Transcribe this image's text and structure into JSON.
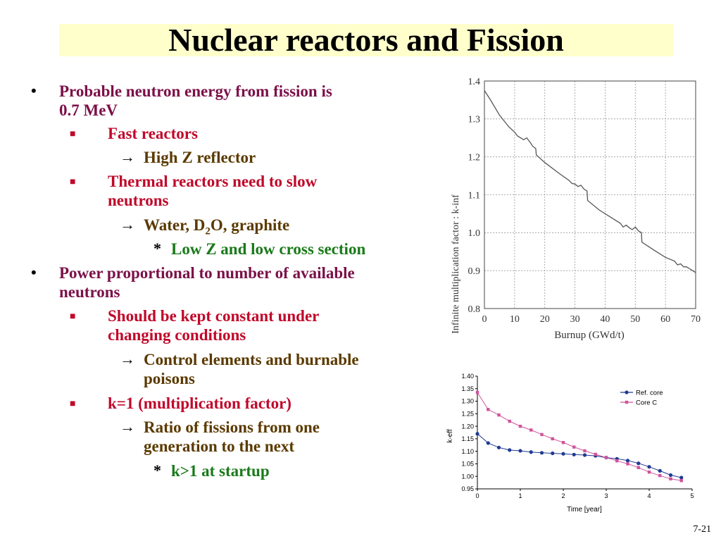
{
  "title": "Nuclear reactors and Fission",
  "page_number": "7-21",
  "bullets": {
    "b1": "Probable neutron energy from fission is",
    "b1_cont": "0.7 MeV",
    "b1_s1": "Fast reactors",
    "b1_s1_a1": "High Z reflector",
    "b1_s2": "Thermal reactors need to slow",
    "b1_s2_cont": "neutrons",
    "b1_s2_a1_pre": "Water, D",
    "b1_s2_a1_sub": "2",
    "b1_s2_a1_post": "O, graphite",
    "b1_s2_a1_n1": "Low Z and low cross section",
    "b2": "Power proportional to number of available",
    "b2_cont": "neutrons",
    "b2_s1": "Should be kept constant under",
    "b2_s1_cont": "changing conditions",
    "b2_s1_a1": "Control elements and burnable",
    "b2_s1_a1_cont": "poisons",
    "b2_s2": "k=1 (multiplication factor)",
    "b2_s2_a1": "Ratio of fissions from one",
    "b2_s2_a1_cont": "generation to the next",
    "b2_s2_a1_n1": "k>1 at startup"
  },
  "markers": {
    "bullet": "•",
    "square": "■",
    "arrow": "→",
    "star": "*"
  },
  "chart_data": [
    {
      "type": "line",
      "xlabel": "Burnup (GWd/t)",
      "ylabel": "Infinite multiplication factor : k-inf",
      "xlim": [
        0,
        70
      ],
      "ylim": [
        0.8,
        1.4
      ],
      "xticks": [
        "0",
        "10",
        "20",
        "30",
        "40",
        "50",
        "60",
        "70"
      ],
      "yticks": [
        "0.8",
        "0.9",
        "1.0",
        "1.1",
        "1.2",
        "1.3",
        "1.4"
      ],
      "grid": true,
      "series": [
        {
          "color": "#555555",
          "x": [
            0,
            2,
            5,
            8,
            10,
            11,
            12,
            13,
            14,
            15,
            16,
            17,
            17.2,
            20,
            25,
            28,
            29,
            30,
            31,
            32,
            33,
            34,
            34.2,
            38,
            42,
            45,
            46,
            47,
            48,
            49,
            50,
            51,
            52,
            52.2,
            56,
            60,
            63,
            64,
            65,
            66,
            67,
            68,
            70
          ],
          "y": [
            1.375,
            1.35,
            1.31,
            1.28,
            1.265,
            1.255,
            1.25,
            1.245,
            1.25,
            1.24,
            1.228,
            1.222,
            1.205,
            1.185,
            1.155,
            1.138,
            1.13,
            1.128,
            1.122,
            1.125,
            1.115,
            1.11,
            1.085,
            1.06,
            1.04,
            1.025,
            1.015,
            1.02,
            1.013,
            1.008,
            1.015,
            1.005,
            1.0,
            0.975,
            0.955,
            0.935,
            0.925,
            0.915,
            0.918,
            0.91,
            0.91,
            0.905,
            0.895
          ]
        }
      ]
    },
    {
      "type": "line",
      "xlabel": "Time [year]",
      "ylabel": "k-eff",
      "xlim": [
        0,
        5
      ],
      "ylim": [
        0.95,
        1.4
      ],
      "xticks": [
        "0",
        "1",
        "2",
        "3",
        "4",
        "5"
      ],
      "yticks": [
        "0.95",
        "1.00",
        "1.05",
        "1.10",
        "1.15",
        "1.20",
        "1.25",
        "1.30",
        "1.35",
        "1.40"
      ],
      "legend": "top-right",
      "series": [
        {
          "name": "Ref. core",
          "color": "#1f3a93",
          "marker": "circle",
          "x": [
            0,
            0.25,
            0.5,
            0.75,
            1,
            1.25,
            1.5,
            1.75,
            2,
            2.25,
            2.5,
            2.75,
            3,
            3.25,
            3.5,
            3.75,
            4,
            4.25,
            4.5,
            4.75
          ],
          "y": [
            1.17,
            1.133,
            1.115,
            1.105,
            1.102,
            1.097,
            1.094,
            1.092,
            1.09,
            1.087,
            1.085,
            1.082,
            1.075,
            1.07,
            1.063,
            1.052,
            1.038,
            1.022,
            1.005,
            0.995
          ]
        },
        {
          "name": "Core C",
          "color": "#d0549b",
          "marker": "square",
          "x": [
            0,
            0.25,
            0.5,
            0.75,
            1,
            1.25,
            1.5,
            1.75,
            2,
            2.25,
            2.5,
            2.75,
            3,
            3.25,
            3.5,
            3.75,
            4,
            4.25,
            4.5,
            4.75
          ],
          "y": [
            1.335,
            1.267,
            1.245,
            1.22,
            1.2,
            1.185,
            1.167,
            1.15,
            1.135,
            1.117,
            1.102,
            1.088,
            1.075,
            1.062,
            1.05,
            1.035,
            1.017,
            1.003,
            0.99,
            0.983
          ]
        }
      ]
    }
  ]
}
